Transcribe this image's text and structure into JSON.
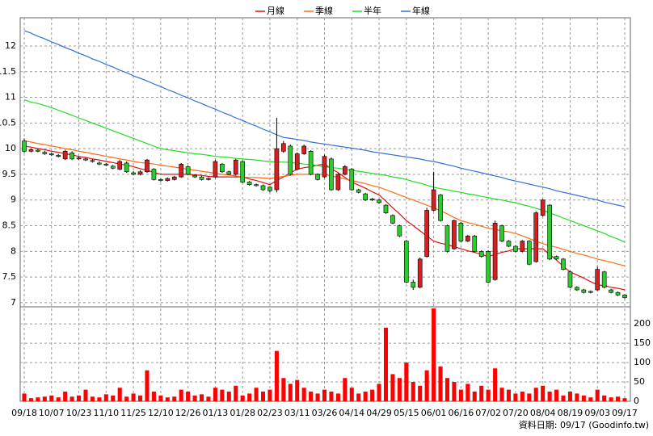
{
  "chart_data": {
    "type": "candlestick",
    "series": [
      {
        "name": "月線",
        "color": "#e01010",
        "values": [
          10.05,
          10.03,
          10.0,
          9.98,
          9.95,
          9.93,
          9.9,
          9.88,
          9.85,
          9.83,
          9.8,
          9.78,
          9.75,
          9.73,
          9.7,
          9.68,
          9.65,
          9.61,
          9.58,
          9.54,
          9.5,
          9.5,
          9.5,
          9.5,
          9.5,
          9.49,
          9.48,
          9.46,
          9.45,
          9.45,
          9.45,
          9.45,
          9.45,
          9.41,
          9.38,
          9.34,
          9.3,
          9.38,
          9.45,
          9.53,
          9.6,
          9.63,
          9.65,
          9.68,
          9.7,
          9.61,
          9.53,
          9.44,
          9.35,
          9.29,
          9.23,
          9.16,
          9.1,
          8.98,
          8.85,
          8.73,
          8.6,
          8.5,
          8.4,
          8.3,
          8.2,
          8.16,
          8.13,
          8.09,
          8.05,
          8.01,
          7.98,
          7.94,
          7.9,
          7.94,
          7.98,
          8.01,
          8.05,
          8.05,
          8.05,
          8.05,
          8.05,
          7.94,
          7.83,
          7.71,
          7.6,
          7.54,
          7.48,
          7.41,
          7.35,
          7.33,
          7.3,
          7.28,
          7.25
        ]
      },
      {
        "name": "季線",
        "color": "#ff6a10",
        "values": [
          10.15,
          10.13,
          10.1,
          10.08,
          10.05,
          10.03,
          10.0,
          9.98,
          9.95,
          9.93,
          9.9,
          9.88,
          9.85,
          9.83,
          9.8,
          9.78,
          9.75,
          9.73,
          9.72,
          9.7,
          9.68,
          9.66,
          9.64,
          9.62,
          9.6,
          9.58,
          9.56,
          9.54,
          9.52,
          9.5,
          9.49,
          9.47,
          9.45,
          9.44,
          9.44,
          9.43,
          9.42,
          9.44,
          9.46,
          9.48,
          9.5,
          9.5,
          9.5,
          9.5,
          9.5,
          9.47,
          9.44,
          9.41,
          9.38,
          9.35,
          9.32,
          9.28,
          9.25,
          9.2,
          9.15,
          9.1,
          9.05,
          9.0,
          8.95,
          8.9,
          8.85,
          8.79,
          8.73,
          8.66,
          8.6,
          8.56,
          8.53,
          8.49,
          8.45,
          8.43,
          8.4,
          8.38,
          8.35,
          8.3,
          8.25,
          8.2,
          8.15,
          8.11,
          8.08,
          8.04,
          8.0,
          7.96,
          7.93,
          7.89,
          7.85,
          7.82,
          7.79,
          7.75,
          7.72
        ]
      },
      {
        "name": "半年",
        "color": "#22dd22",
        "values": [
          10.95,
          10.91,
          10.88,
          10.84,
          10.8,
          10.75,
          10.7,
          10.65,
          10.6,
          10.55,
          10.5,
          10.45,
          10.4,
          10.35,
          10.3,
          10.25,
          10.2,
          10.15,
          10.1,
          10.05,
          10.0,
          9.98,
          9.96,
          9.94,
          9.92,
          9.9,
          9.89,
          9.87,
          9.85,
          9.84,
          9.83,
          9.81,
          9.8,
          9.79,
          9.78,
          9.76,
          9.75,
          9.74,
          9.74,
          9.73,
          9.72,
          9.7,
          9.69,
          9.67,
          9.65,
          9.63,
          9.62,
          9.6,
          9.58,
          9.56,
          9.54,
          9.52,
          9.5,
          9.48,
          9.45,
          9.43,
          9.4,
          9.36,
          9.33,
          9.29,
          9.25,
          9.22,
          9.2,
          9.17,
          9.15,
          9.12,
          9.1,
          9.07,
          9.05,
          9.02,
          9.0,
          8.97,
          8.95,
          8.91,
          8.88,
          8.84,
          8.8,
          8.75,
          8.7,
          8.65,
          8.6,
          8.55,
          8.5,
          8.45,
          8.4,
          8.35,
          8.29,
          8.24,
          8.18
        ]
      },
      {
        "name": "年線",
        "color": "#2f6fd6",
        "values": [
          12.3,
          12.25,
          12.19,
          12.14,
          12.08,
          12.03,
          11.97,
          11.92,
          11.86,
          11.81,
          11.75,
          11.7,
          11.64,
          11.59,
          11.53,
          11.48,
          11.42,
          11.37,
          11.32,
          11.26,
          11.21,
          11.15,
          11.1,
          11.04,
          10.99,
          10.93,
          10.88,
          10.82,
          10.77,
          10.71,
          10.66,
          10.6,
          10.55,
          10.49,
          10.44,
          10.38,
          10.33,
          10.27,
          10.22,
          10.2,
          10.18,
          10.16,
          10.13,
          10.11,
          10.09,
          10.07,
          10.05,
          10.03,
          10.01,
          9.99,
          9.97,
          9.94,
          9.92,
          9.9,
          9.88,
          9.86,
          9.84,
          9.82,
          9.8,
          9.77,
          9.75,
          9.72,
          9.69,
          9.66,
          9.62,
          9.59,
          9.56,
          9.53,
          9.5,
          9.47,
          9.44,
          9.4,
          9.37,
          9.34,
          9.31,
          9.28,
          9.25,
          9.22,
          9.18,
          9.15,
          9.12,
          9.09,
          9.06,
          9.03,
          9.0,
          8.96,
          8.93,
          8.9,
          8.87
        ]
      }
    ],
    "categories": [
      "09/18",
      null,
      null,
      null,
      "10/07",
      null,
      null,
      null,
      "10/23",
      null,
      null,
      null,
      "11/10",
      null,
      null,
      null,
      "11/25",
      null,
      null,
      null,
      "12/10",
      null,
      null,
      null,
      "12/26",
      null,
      null,
      null,
      "01/13",
      null,
      null,
      null,
      "01/28",
      null,
      null,
      null,
      "02/23",
      null,
      null,
      null,
      "03/11",
      null,
      null,
      null,
      "03/26",
      null,
      null,
      null,
      "04/14",
      null,
      null,
      null,
      "04/29",
      null,
      null,
      null,
      "05/15",
      null,
      null,
      null,
      "06/01",
      null,
      null,
      null,
      "06/16",
      null,
      null,
      null,
      "07/02",
      null,
      null,
      null,
      "07/20",
      null,
      null,
      null,
      "08/04",
      null,
      null,
      null,
      "08/19",
      null,
      null,
      null,
      "09/03",
      null,
      null,
      null,
      "09/17"
    ],
    "open": [
      10.15,
      9.95,
      9.97,
      9.93,
      9.9,
      9.87,
      9.8,
      9.92,
      9.8,
      9.8,
      9.77,
      9.72,
      9.7,
      9.66,
      9.6,
      9.72,
      9.53,
      9.5,
      9.55,
      9.6,
      9.4,
      9.38,
      9.4,
      9.45,
      9.65,
      9.48,
      9.45,
      9.4,
      9.45,
      9.7,
      9.55,
      9.5,
      9.75,
      9.35,
      9.3,
      9.28,
      9.25,
      9.2,
      9.95,
      10.05,
      9.6,
      9.9,
      9.95,
      9.5,
      9.45,
      9.8,
      9.2,
      9.5,
      9.6,
      9.2,
      9.12,
      9.02,
      9.0,
      8.9,
      8.7,
      8.5,
      8.2,
      7.4,
      7.3,
      7.9,
      8.8,
      9.1,
      8.5,
      8.05,
      8.55,
      8.2,
      8.3,
      8.0,
      8.0,
      7.45,
      8.5,
      8.2,
      8.1,
      8.0,
      8.2,
      7.8,
      8.7,
      8.9,
      7.9,
      7.85,
      7.6,
      7.3,
      7.25,
      7.22,
      7.25,
      7.6,
      7.25,
      7.2,
      7.15
    ],
    "high": [
      10.2,
      10.0,
      10.0,
      9.96,
      9.93,
      9.9,
      9.98,
      9.95,
      9.85,
      9.82,
      9.8,
      9.75,
      9.72,
      9.68,
      9.78,
      9.75,
      9.56,
      9.58,
      9.8,
      9.62,
      9.42,
      9.44,
      9.47,
      9.72,
      9.67,
      9.5,
      9.47,
      9.44,
      9.78,
      9.72,
      9.57,
      9.8,
      9.77,
      9.37,
      9.32,
      9.3,
      9.27,
      10.6,
      10.15,
      10.08,
      9.93,
      10.08,
      9.97,
      9.52,
      9.88,
      9.83,
      9.52,
      9.68,
      9.62,
      9.22,
      9.14,
      9.04,
      9.02,
      8.92,
      8.72,
      8.52,
      8.22,
      7.45,
      7.88,
      8.85,
      9.55,
      9.12,
      8.52,
      8.62,
      8.57,
      8.32,
      8.32,
      8.02,
      8.02,
      8.6,
      8.52,
      8.22,
      8.12,
      8.22,
      8.22,
      8.78,
      9.02,
      8.92,
      7.92,
      7.87,
      7.62,
      7.32,
      7.27,
      7.24,
      7.7,
      7.62,
      7.27,
      7.22,
      7.17
    ],
    "low": [
      9.92,
      9.93,
      9.93,
      9.88,
      9.86,
      9.83,
      9.78,
      9.78,
      9.78,
      9.76,
      9.73,
      9.68,
      9.66,
      9.6,
      9.58,
      9.53,
      9.48,
      9.48,
      9.53,
      9.38,
      9.36,
      9.36,
      9.38,
      9.43,
      9.48,
      9.43,
      9.38,
      9.38,
      9.43,
      9.53,
      9.48,
      9.48,
      9.33,
      9.28,
      9.26,
      9.18,
      9.15,
      9.15,
      9.92,
      9.48,
      9.58,
      9.88,
      9.48,
      9.38,
      9.43,
      9.18,
      9.18,
      9.48,
      9.18,
      9.13,
      8.98,
      8.98,
      8.93,
      8.73,
      8.53,
      8.28,
      7.38,
      7.25,
      7.28,
      7.88,
      8.78,
      8.58,
      7.98,
      8.03,
      8.18,
      8.18,
      7.98,
      7.88,
      7.38,
      7.43,
      8.18,
      8.08,
      7.98,
      7.98,
      7.73,
      7.78,
      8.68,
      7.83,
      7.83,
      7.63,
      7.28,
      7.23,
      7.18,
      7.18,
      7.23,
      7.28,
      7.18,
      7.13,
      7.08
    ],
    "close": [
      9.95,
      9.98,
      9.95,
      9.9,
      9.88,
      9.85,
      9.95,
      9.8,
      9.82,
      9.78,
      9.75,
      9.7,
      9.68,
      9.62,
      9.75,
      9.55,
      9.5,
      9.55,
      9.78,
      9.4,
      9.38,
      9.42,
      9.45,
      9.7,
      9.5,
      9.45,
      9.4,
      9.42,
      9.75,
      9.55,
      9.5,
      9.78,
      9.35,
      9.3,
      9.28,
      9.2,
      9.18,
      10.0,
      10.1,
      9.5,
      9.9,
      10.05,
      9.5,
      9.4,
      9.85,
      9.2,
      9.5,
      9.65,
      9.2,
      9.15,
      9.0,
      9.0,
      8.95,
      8.75,
      8.55,
      8.3,
      7.4,
      7.3,
      7.85,
      8.8,
      9.2,
      8.6,
      8.0,
      8.6,
      8.2,
      8.3,
      8.0,
      7.9,
      7.4,
      8.55,
      8.2,
      8.1,
      8.0,
      8.2,
      7.75,
      8.75,
      9.0,
      7.85,
      7.85,
      7.65,
      7.3,
      7.25,
      7.2,
      7.2,
      7.65,
      7.3,
      7.2,
      7.15,
      7.1
    ],
    "up_color": "#d42020",
    "down_color": "#2ccc2c",
    "ylim": [
      6.92,
      12.55
    ],
    "yticks": [
      7,
      7.5,
      8,
      8.5,
      9,
      9.5,
      10,
      10.5,
      11,
      11.5,
      12
    ],
    "volume": {
      "color": "#ff0000",
      "ylim": [
        0,
        244
      ],
      "yticks": [
        0,
        50,
        100,
        150,
        200
      ],
      "values": [
        20,
        8,
        10,
        12,
        15,
        10,
        25,
        12,
        15,
        30,
        12,
        10,
        18,
        15,
        35,
        12,
        20,
        15,
        80,
        25,
        15,
        10,
        12,
        30,
        25,
        15,
        18,
        12,
        35,
        30,
        25,
        40,
        15,
        20,
        35,
        25,
        30,
        130,
        60,
        45,
        55,
        35,
        25,
        20,
        30,
        25,
        20,
        60,
        35,
        20,
        25,
        30,
        45,
        190,
        70,
        60,
        100,
        50,
        40,
        80,
        240,
        90,
        60,
        50,
        30,
        45,
        25,
        40,
        30,
        85,
        35,
        30,
        20,
        25,
        20,
        35,
        40,
        25,
        30,
        15,
        25,
        20,
        15,
        10,
        30,
        15,
        10,
        12,
        8
      ]
    },
    "grid": true,
    "footer": "資料日期: 09/17 (Goodinfo.tw)"
  }
}
